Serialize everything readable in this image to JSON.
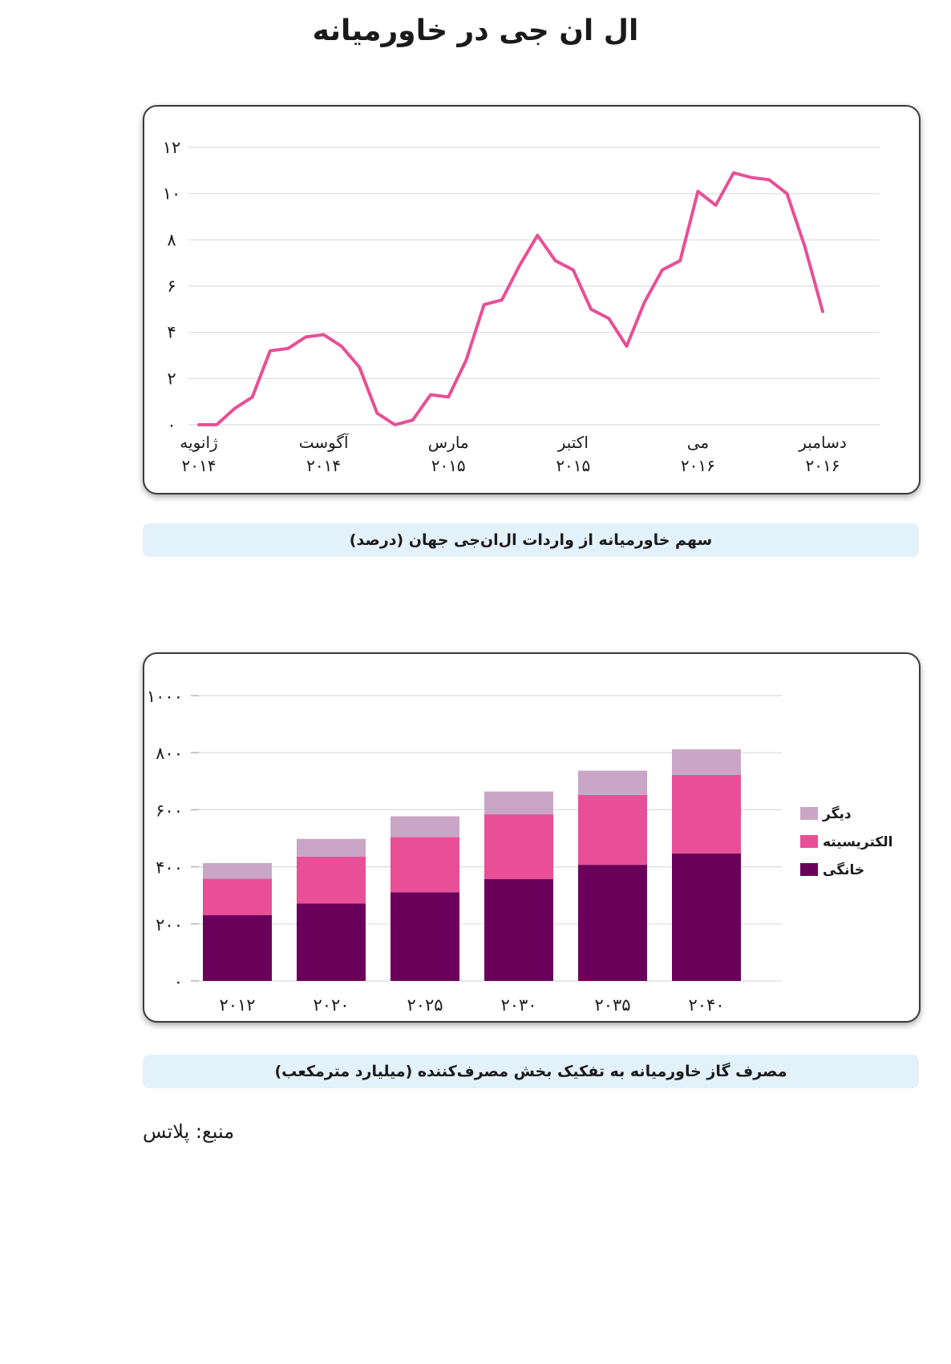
{
  "page_title": "ال ان جی در خاورمیانه",
  "chart_data": [
    {
      "type": "line",
      "caption": "سهم خاورمیانه از واردات ال‌ان‌جی جهان (درصد)",
      "ylim": [
        0,
        12
      ],
      "yticks": [
        0,
        2,
        4,
        6,
        8,
        10,
        12
      ],
      "ytick_labels": [
        "۰",
        "۲",
        "۴",
        "۶",
        "۸",
        "۱۰",
        "۱۲"
      ],
      "grid": true,
      "color": "#e84f96",
      "x_tick_labels": [
        {
          "index": 0,
          "line1": "ژانویه",
          "line2": "۲۰۱۴"
        },
        {
          "index": 7,
          "line1": "آگوست",
          "line2": "۲۰۱۴"
        },
        {
          "index": 14,
          "line1": "مارس",
          "line2": "۲۰۱۵"
        },
        {
          "index": 21,
          "line1": "اکتبر",
          "line2": "۲۰۱۵"
        },
        {
          "index": 28,
          "line1": "می",
          "line2": "۲۰۱۶"
        },
        {
          "index": 35,
          "line1": "دسامبر",
          "line2": "۲۰۱۶"
        }
      ],
      "values": [
        0.0,
        0.0,
        0.7,
        1.2,
        3.2,
        3.3,
        3.8,
        3.9,
        3.4,
        2.5,
        0.5,
        0.0,
        0.2,
        1.3,
        1.2,
        2.8,
        5.2,
        5.4,
        6.9,
        8.2,
        7.1,
        6.7,
        5.0,
        4.6,
        3.4,
        5.3,
        6.7,
        7.1,
        10.1,
        9.5,
        10.9,
        10.7,
        10.6,
        10.0,
        7.7,
        4.9
      ]
    },
    {
      "type": "bar",
      "stacked": true,
      "caption": "مصرف گاز خاورمیانه به تفکیک بخش مصرف‌کننده (میلیارد مترمکعب)",
      "categories": [
        "۲۰۱۲",
        "۲۰۲۰",
        "۲۰۲۵",
        "۲۰۳۰",
        "۲۰۳۵",
        "۲۰۴۰"
      ],
      "ylim": [
        0,
        1000
      ],
      "yticks": [
        0,
        200,
        400,
        600,
        800,
        1000
      ],
      "ytick_labels": [
        "۰",
        "۲۰۰",
        "۴۰۰",
        "۶۰۰",
        "۸۰۰",
        "۱۰۰۰"
      ],
      "grid": true,
      "legend_position": "right",
      "series": [
        {
          "name": "خانگی",
          "color": "#6b005b",
          "values": [
            231,
            271,
            311,
            357,
            407,
            447
          ]
        },
        {
          "name": "الکتریسیته",
          "color": "#e84f96",
          "values": [
            127,
            165,
            193,
            227,
            245,
            275
          ]
        },
        {
          "name": "دیگر",
          "color": "#caa6c6",
          "values": [
            55,
            62,
            73,
            80,
            85,
            90
          ]
        }
      ]
    }
  ],
  "source": "منبع: پلاتس"
}
